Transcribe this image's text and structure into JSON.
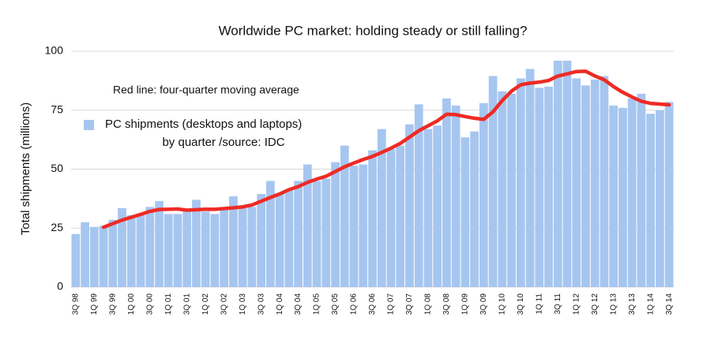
{
  "chart_data": {
    "type": "bar",
    "title": "Worldwide PC market: holding steady or still falling?",
    "y_label": "Total shipments (millions)",
    "legend_note": "by quarter /source: IDC",
    "categories": [
      "3Q 98",
      null,
      "1Q 99",
      null,
      "3Q 99",
      null,
      "1Q 00",
      null,
      "3Q 00",
      null,
      "1Q 01",
      null,
      "3Q 01",
      null,
      "1Q 02",
      null,
      "3Q 02",
      null,
      "1Q 03",
      null,
      "3Q 03",
      null,
      "1Q 04",
      null,
      "3Q 04",
      null,
      "1Q 05",
      null,
      "3Q 05",
      null,
      "1Q 06",
      null,
      "3Q 06",
      null,
      "1Q 07",
      null,
      "3Q 07",
      null,
      "1Q 08",
      null,
      "3Q 08",
      null,
      "1Q 09",
      null,
      "3Q 09",
      null,
      "1Q 10",
      null,
      "3Q 10",
      null,
      "1Q 11",
      null,
      "3Q 11",
      null,
      "1Q 12",
      null,
      "3Q 12",
      null,
      "1Q 13",
      null,
      "3Q 13",
      null,
      "1Q 14",
      null,
      "3Q 14"
    ],
    "series": [
      {
        "name": "PC shipments (desktops and laptops)",
        "color": "#a6c6f0",
        "values": [
          22.5,
          27.5,
          25.5,
          26,
          28.5,
          33.5,
          30.5,
          30.5,
          34,
          36.5,
          31,
          31,
          32,
          37,
          32,
          31,
          33,
          38.5,
          33.5,
          34,
          39.5,
          45,
          39.5,
          41,
          45,
          52,
          45,
          46,
          53,
          60,
          51.5,
          52,
          58,
          67,
          58.5,
          60,
          69,
          77.5,
          67,
          68.5,
          80,
          77,
          63.5,
          66,
          78,
          89.5,
          83,
          82,
          88.5,
          92.5,
          84.5,
          85,
          96,
          96,
          88.5,
          85.5,
          88,
          89.5,
          77,
          76,
          80,
          82,
          73.5,
          75,
          78.5
        ]
      },
      {
        "name": "Red line: four-quarter moving average",
        "color": "#ee2b24",
        "kind": "line",
        "values": [
          null,
          null,
          null,
          25.4,
          26.9,
          28.4,
          29.6,
          30.8,
          32.1,
          32.9,
          33,
          33.1,
          32.6,
          32.8,
          33,
          33,
          33.3,
          33.6,
          34,
          34.8,
          36.4,
          38,
          39.5,
          41.3,
          42.6,
          44.4,
          45.8,
          47,
          49,
          51,
          52.6,
          54.1,
          55.4,
          57.1,
          58.9,
          60.9,
          63.6,
          66.3,
          68.4,
          70.5,
          73.3,
          73.1,
          72.3,
          71.6,
          71.1,
          74.3,
          79.1,
          83.1,
          85.8,
          86.5,
          86.9,
          87.6,
          89.5,
          90.4,
          91.4,
          91.5,
          89.5,
          87.9,
          85,
          82.6,
          80.6,
          78.8,
          77.9,
          77.6,
          77.3
        ]
      }
    ],
    "ylim": [
      0,
      100
    ],
    "yticks": [
      0,
      25,
      50,
      75,
      100
    ],
    "grid": true
  }
}
